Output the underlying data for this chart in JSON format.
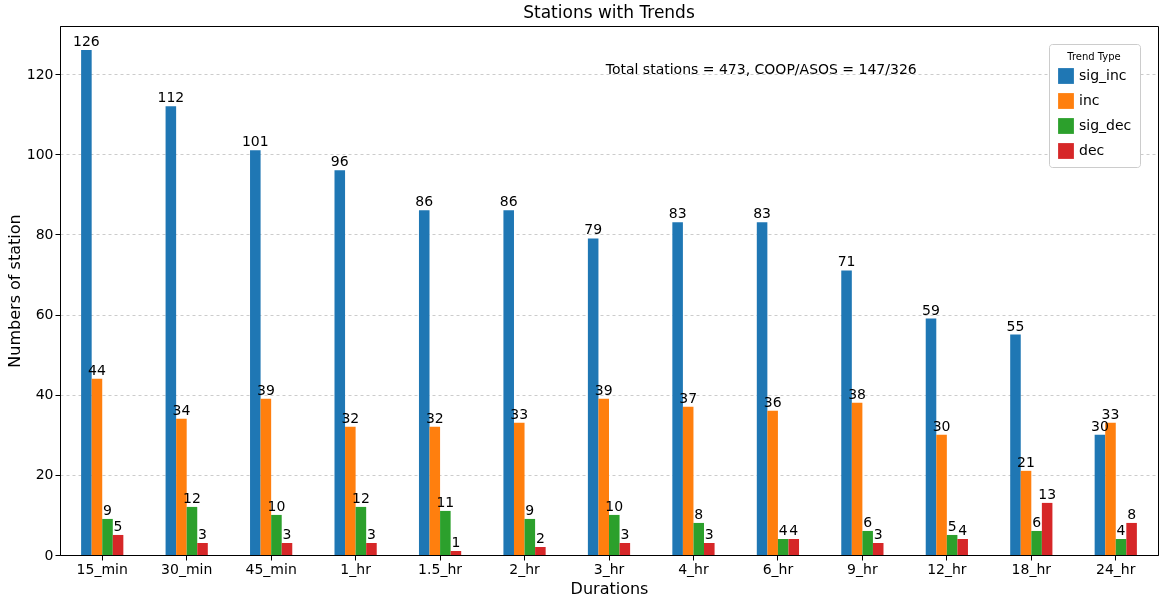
{
  "chart_data": {
    "type": "bar",
    "title": "Stations with Trends",
    "xlabel": "Durations",
    "ylabel": "Numbers of station",
    "legend_title": "Trend Type",
    "categories": [
      "15_min",
      "30_min",
      "45_min",
      "1_hr",
      "1.5_hr",
      "2_hr",
      "3_hr",
      "4_hr",
      "6_hr",
      "9_hr",
      "12_hr",
      "18_hr",
      "24_hr"
    ],
    "series": [
      {
        "name": "sig_inc",
        "color": "#1f77b4",
        "values": [
          126,
          112,
          101,
          96,
          86,
          86,
          79,
          83,
          83,
          71,
          59,
          55,
          30
        ]
      },
      {
        "name": "inc",
        "color": "#ff7f0e",
        "values": [
          44,
          34,
          39,
          32,
          32,
          33,
          39,
          37,
          36,
          38,
          30,
          21,
          33
        ]
      },
      {
        "name": "sig_dec",
        "color": "#2ca02c",
        "values": [
          9,
          12,
          10,
          12,
          11,
          9,
          10,
          8,
          4,
          6,
          5,
          6,
          4
        ]
      },
      {
        "name": "dec",
        "color": "#d62728",
        "values": [
          5,
          3,
          3,
          3,
          1,
          2,
          3,
          3,
          4,
          3,
          4,
          13,
          8
        ]
      }
    ],
    "ylim": [
      0,
      132
    ],
    "yticks": [
      0,
      20,
      40,
      60,
      80,
      100,
      120
    ],
    "grid": "y",
    "legend": "top right",
    "data_labels": true,
    "annotations": [
      "Total stations = 473, COOP/ASOS = 147/326"
    ]
  }
}
